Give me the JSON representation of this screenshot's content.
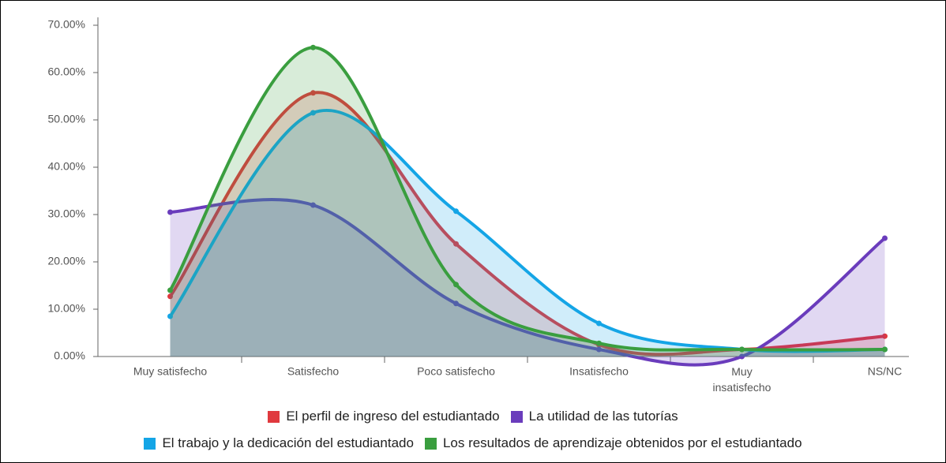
{
  "chart_data": {
    "type": "area",
    "categories": [
      "Muy satisfecho",
      "Satisfecho",
      "Poco satisfecho",
      "Insatisfecho",
      "Muy insatisfecho",
      "NS/NC"
    ],
    "series": [
      {
        "name": "El perfil de ingreso del estudiantado",
        "color": "#e0393e",
        "values": [
          12.7,
          55.7,
          23.8,
          2.5,
          1.5,
          4.3
        ]
      },
      {
        "name": "La utilidad de las tutorías",
        "color": "#6a3cbc",
        "values": [
          30.5,
          32,
          11.2,
          1.5,
          0,
          25
        ]
      },
      {
        "name": "El trabajo y la dedicación del estudiantado",
        "color": "#14a5e6",
        "values": [
          8.5,
          51.5,
          30.7,
          7,
          1.5,
          1.5
        ]
      },
      {
        "name": "Los resultados de aprendizaje obtenidos por el estudiantado",
        "color": "#3a9e3f",
        "values": [
          14,
          65.3,
          15.2,
          2.8,
          1.5,
          1.5
        ]
      }
    ],
    "ylim": [
      0,
      70
    ],
    "yticks": [
      {
        "value": 0,
        "label": "0.00%"
      },
      {
        "value": 10,
        "label": "10.00%"
      },
      {
        "value": 20,
        "label": "20.00%"
      },
      {
        "value": 30,
        "label": "30.00%"
      },
      {
        "value": 40,
        "label": "40.00%"
      },
      {
        "value": 50,
        "label": "50.00%"
      },
      {
        "value": 60,
        "label": "60.00%"
      },
      {
        "value": 70,
        "label": "70.00%"
      }
    ],
    "legend": "bottom"
  }
}
